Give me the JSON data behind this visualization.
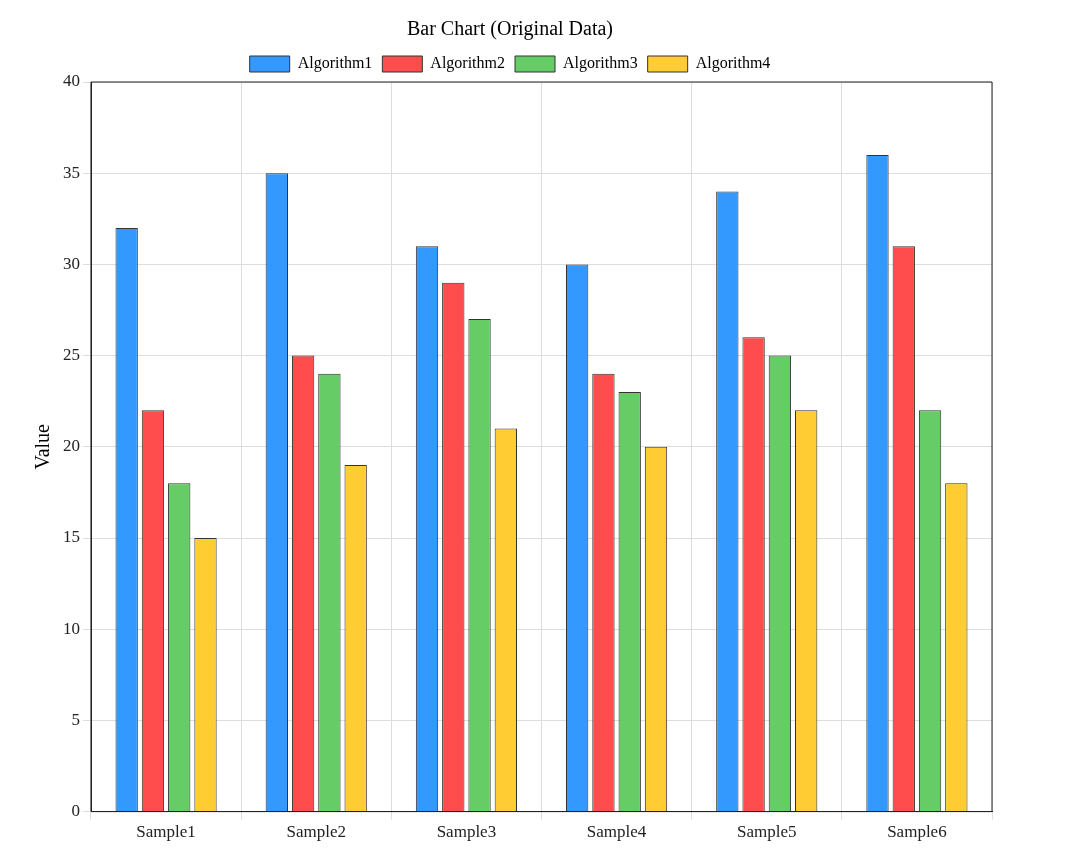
{
  "chart_data": {
    "type": "bar",
    "title": "Bar Chart (Original Data)",
    "ylabel": "Value",
    "categories": [
      "Sample1",
      "Sample2",
      "Sample3",
      "Sample4",
      "Sample5",
      "Sample6"
    ],
    "series": [
      {
        "name": "Algorithm1",
        "color": "#3399ff",
        "values": [
          32,
          35,
          31,
          30,
          34,
          36
        ]
      },
      {
        "name": "Algorithm2",
        "color": "#ff4d4d",
        "values": [
          22,
          25,
          29,
          24,
          26,
          31
        ]
      },
      {
        "name": "Algorithm3",
        "color": "#66cc66",
        "values": [
          18,
          24,
          27,
          23,
          25,
          22
        ]
      },
      {
        "name": "Algorithm4",
        "color": "#ffcc33",
        "values": [
          15,
          19,
          21,
          20,
          22,
          18
        ]
      }
    ],
    "ylim": [
      0,
      40
    ],
    "yticks": [
      0,
      5,
      10,
      15,
      20,
      25,
      30,
      35,
      40
    ],
    "grid": true,
    "legend": "top"
  }
}
